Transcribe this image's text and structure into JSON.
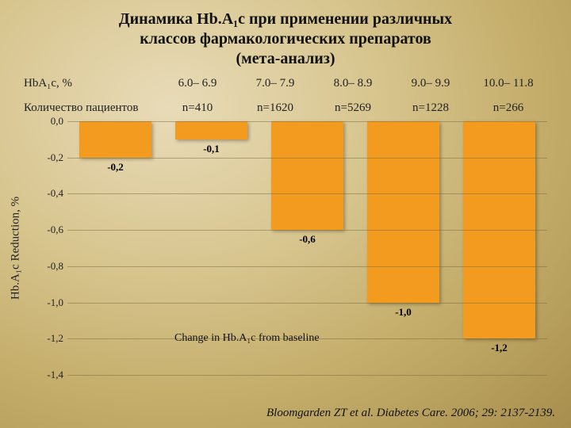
{
  "title_lines": [
    "Динамика Hb.A₁c при применении различных",
    "классов фармакологических препаратов",
    "(мета-анализ)"
  ],
  "header": {
    "row1_label": "HbA₁c, %",
    "row2_label": "Количество пациентов",
    "columns": [
      {
        "range": "6.0– 6.9",
        "n": "n=410"
      },
      {
        "range": "7.0– 7.9",
        "n": "n=1620"
      },
      {
        "range": "8.0– 8.9",
        "n": "n=5269"
      },
      {
        "range": "9.0– 9.9",
        "n": "n=1228"
      },
      {
        "range": "10.0– 11.8",
        "n": "n=266"
      }
    ]
  },
  "chart": {
    "type": "bar",
    "ylabel": "Hb.A₁c Reduction, %",
    "ylim": [
      -1.4,
      0.0
    ],
    "ytick_step": 0.2,
    "ytick_labels": [
      "0,0",
      "-0,2",
      "-0,4",
      "-0,6",
      "-0,8",
      "-1,0",
      "-1,2",
      "-1,4"
    ],
    "values": [
      -0.2,
      -0.1,
      -0.6,
      -1.0,
      -1.2
    ],
    "value_labels": [
      "-0,2",
      "-0,1",
      "-0,6",
      "-1,0",
      "-1,2"
    ],
    "bar_color": "#f29b1f",
    "grid_color": "#7a6a40",
    "caption": "Change in Hb.A₁c from baseline",
    "title_fontsize": 20,
    "label_fontsize": 15
  },
  "citation": "Bloomgarden ZT et al. Diabetes Care. 2006; 29: 2137-2139."
}
